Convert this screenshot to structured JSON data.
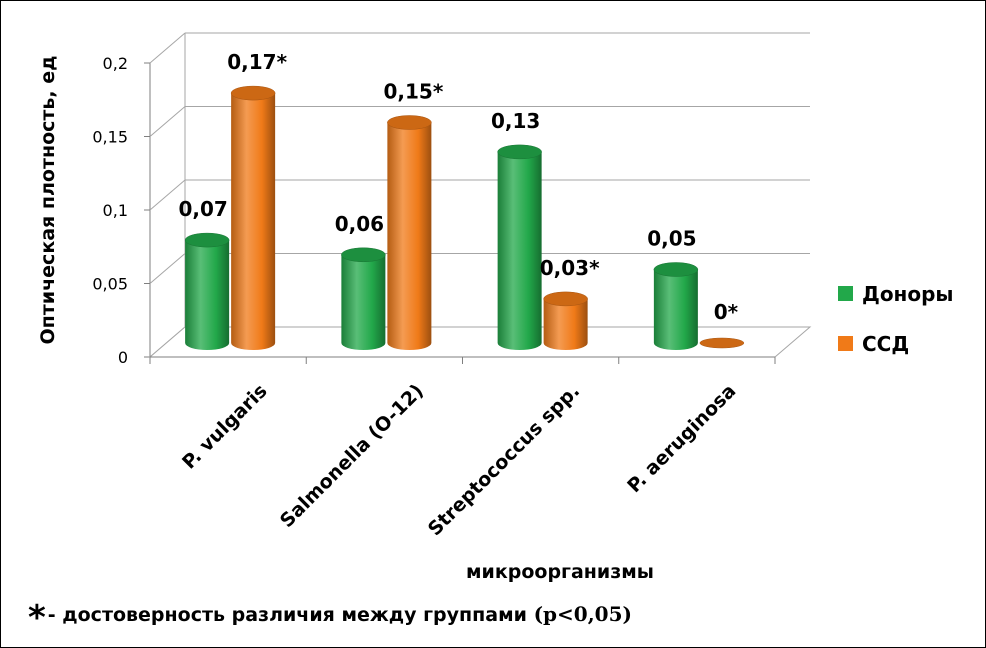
{
  "chart_data": {
    "type": "bar",
    "categories": [
      "P. vulgaris",
      "Salmonella (O-12)",
      "Streptococcus spp.",
      "P. aeruginosa"
    ],
    "series": [
      {
        "name": "Доноры",
        "color": "#22a84a",
        "values": [
          0.07,
          0.06,
          0.13,
          0.05
        ],
        "labels": [
          "0,07",
          "0,06",
          "0,13",
          "0,05"
        ]
      },
      {
        "name": "ССД",
        "color": "#f07a18",
        "values": [
          0.17,
          0.15,
          0.03,
          0
        ],
        "labels": [
          "0,17*",
          "0,15*",
          "0,03*",
          "0*"
        ]
      }
    ],
    "ylim": [
      0,
      0.2
    ],
    "yticks": [
      0,
      0.05,
      0.1,
      0.15,
      0.2
    ],
    "ytick_labels": [
      "0",
      "0,05",
      "0,1",
      "0,15",
      "0,2"
    ],
    "xlabel": "микроорганизмы",
    "ylabel": "Оптическая плотность, ед",
    "legend_position": "right",
    "grid": true,
    "style": "3d-cylinder"
  },
  "footnote": {
    "star": "*",
    "text": "- достоверность различия между группами ",
    "pvalue": "(p<0,05)"
  }
}
